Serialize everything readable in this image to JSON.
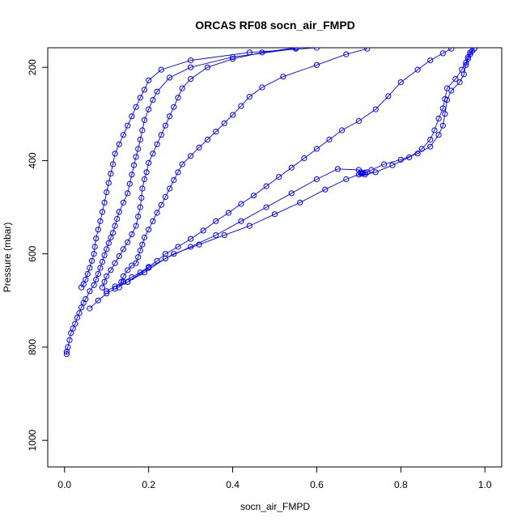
{
  "chart_data": {
    "type": "line",
    "title": "ORCAS RF08 socn_air_FMPD",
    "xlabel": "socn_air_FMPD",
    "ylabel": "Pressure (mbar)",
    "xlim": [
      -0.04,
      1.04
    ],
    "ylim": [
      1057,
      158
    ],
    "y_reversed": true,
    "x_ticks": [
      0.0,
      0.2,
      0.4,
      0.6,
      0.8,
      1.0
    ],
    "x_tick_labels": [
      "0.0",
      "0.2",
      "0.4",
      "0.6",
      "0.8",
      "1.0"
    ],
    "y_ticks": [
      200,
      400,
      600,
      800,
      1000
    ],
    "y_tick_labels": [
      "200",
      "400",
      "600",
      "800",
      "1000"
    ],
    "grid": false,
    "marker": "open-circle",
    "color": "#0000ff",
    "series": [
      {
        "values": [
          [
            0.005,
            815
          ],
          [
            0.005,
            810
          ],
          [
            0.008,
            800
          ],
          [
            0.012,
            785
          ],
          [
            0.015,
            770
          ],
          [
            0.02,
            760
          ],
          [
            0.025,
            750
          ],
          [
            0.03,
            737
          ],
          [
            0.035,
            727
          ],
          [
            0.04,
            715
          ],
          [
            0.045,
            705
          ],
          [
            0.05,
            697
          ],
          [
            0.06,
            680
          ],
          [
            0.07,
            667
          ],
          [
            0.075,
            655
          ],
          [
            0.08,
            643
          ],
          [
            0.085,
            630
          ],
          [
            0.09,
            617
          ],
          [
            0.095,
            603
          ],
          [
            0.1,
            590
          ],
          [
            0.105,
            577
          ],
          [
            0.11,
            565
          ],
          [
            0.115,
            555
          ],
          [
            0.12,
            540
          ],
          [
            0.125,
            525
          ],
          [
            0.13,
            510
          ],
          [
            0.14,
            490
          ],
          [
            0.15,
            470
          ],
          [
            0.155,
            450
          ],
          [
            0.16,
            430
          ],
          [
            0.165,
            410
          ],
          [
            0.17,
            392
          ],
          [
            0.175,
            375
          ],
          [
            0.18,
            355
          ],
          [
            0.185,
            335
          ],
          [
            0.19,
            313
          ],
          [
            0.2,
            290
          ],
          [
            0.21,
            270
          ],
          [
            0.22,
            252
          ],
          [
            0.25,
            222
          ],
          [
            0.3,
            200
          ],
          [
            0.4,
            178
          ],
          [
            0.55,
            160
          ]
        ]
      },
      {
        "values": [
          [
            0.04,
            672
          ],
          [
            0.045,
            665
          ],
          [
            0.05,
            655
          ],
          [
            0.055,
            643
          ],
          [
            0.06,
            630
          ],
          [
            0.065,
            615
          ],
          [
            0.07,
            600
          ],
          [
            0.072,
            585
          ],
          [
            0.075,
            567
          ],
          [
            0.08,
            548
          ],
          [
            0.085,
            530
          ],
          [
            0.09,
            510
          ],
          [
            0.095,
            490
          ],
          [
            0.1,
            468
          ],
          [
            0.105,
            448
          ],
          [
            0.11,
            428
          ],
          [
            0.115,
            408
          ],
          [
            0.12,
            385
          ],
          [
            0.13,
            365
          ],
          [
            0.14,
            345
          ],
          [
            0.15,
            325
          ],
          [
            0.16,
            305
          ],
          [
            0.17,
            285
          ],
          [
            0.18,
            265
          ],
          [
            0.19,
            248
          ],
          [
            0.2,
            228
          ],
          [
            0.23,
            205
          ],
          [
            0.3,
            185
          ],
          [
            0.44,
            168
          ],
          [
            0.6,
            158
          ]
        ]
      },
      {
        "values": [
          [
            0.09,
            672
          ],
          [
            0.095,
            660
          ],
          [
            0.1,
            648
          ],
          [
            0.11,
            635
          ],
          [
            0.12,
            620
          ],
          [
            0.13,
            605
          ],
          [
            0.14,
            590
          ],
          [
            0.15,
            575
          ],
          [
            0.16,
            558
          ],
          [
            0.17,
            540
          ],
          [
            0.175,
            520
          ],
          [
            0.18,
            500
          ],
          [
            0.183,
            480
          ],
          [
            0.185,
            460
          ],
          [
            0.19,
            440
          ],
          [
            0.195,
            425
          ],
          [
            0.2,
            405
          ],
          [
            0.21,
            385
          ],
          [
            0.22,
            365
          ],
          [
            0.23,
            345
          ],
          [
            0.24,
            325
          ],
          [
            0.25,
            305
          ],
          [
            0.26,
            285
          ],
          [
            0.27,
            265
          ],
          [
            0.28,
            245
          ],
          [
            0.3,
            225
          ],
          [
            0.34,
            200
          ],
          [
            0.4,
            182
          ],
          [
            0.47,
            168
          ],
          [
            0.55,
            158
          ]
        ]
      },
      {
        "values": [
          [
            0.13,
            672
          ],
          [
            0.135,
            660
          ],
          [
            0.14,
            648
          ],
          [
            0.15,
            635
          ],
          [
            0.16,
            625
          ],
          [
            0.17,
            620
          ],
          [
            0.175,
            607
          ],
          [
            0.18,
            593
          ],
          [
            0.185,
            580
          ],
          [
            0.19,
            565
          ],
          [
            0.2,
            548
          ],
          [
            0.21,
            530
          ],
          [
            0.22,
            512
          ],
          [
            0.23,
            495
          ],
          [
            0.24,
            478
          ],
          [
            0.25,
            460
          ],
          [
            0.26,
            442
          ],
          [
            0.27,
            425
          ],
          [
            0.28,
            408
          ],
          [
            0.3,
            390
          ],
          [
            0.32,
            372
          ],
          [
            0.34,
            355
          ],
          [
            0.36,
            338
          ],
          [
            0.38,
            320
          ],
          [
            0.4,
            302
          ],
          [
            0.42,
            283
          ],
          [
            0.44,
            263
          ],
          [
            0.47,
            243
          ],
          [
            0.52,
            220
          ],
          [
            0.6,
            195
          ],
          [
            0.67,
            172
          ],
          [
            0.72,
            160
          ]
        ]
      },
      {
        "values": [
          [
            0.1,
            680
          ],
          [
            0.12,
            670
          ],
          [
            0.14,
            660
          ],
          [
            0.16,
            650
          ],
          [
            0.18,
            640
          ],
          [
            0.2,
            628
          ],
          [
            0.22,
            615
          ],
          [
            0.24,
            600
          ],
          [
            0.27,
            585
          ],
          [
            0.3,
            568
          ],
          [
            0.33,
            550
          ],
          [
            0.36,
            530
          ],
          [
            0.39,
            512
          ],
          [
            0.42,
            493
          ],
          [
            0.45,
            475
          ],
          [
            0.48,
            455
          ],
          [
            0.51,
            435
          ],
          [
            0.54,
            415
          ],
          [
            0.57,
            395
          ],
          [
            0.6,
            375
          ],
          [
            0.63,
            355
          ],
          [
            0.66,
            335
          ],
          [
            0.7,
            315
          ],
          [
            0.74,
            290
          ],
          [
            0.77,
            262
          ],
          [
            0.8,
            232
          ],
          [
            0.84,
            205
          ],
          [
            0.87,
            185
          ],
          [
            0.9,
            170
          ],
          [
            0.92,
            160
          ]
        ]
      },
      {
        "values": [
          [
            0.15,
            660
          ],
          [
            0.2,
            630
          ],
          [
            0.26,
            600
          ],
          [
            0.32,
            580
          ],
          [
            0.38,
            560
          ],
          [
            0.44,
            540
          ],
          [
            0.5,
            515
          ],
          [
            0.56,
            490
          ],
          [
            0.62,
            462
          ],
          [
            0.67,
            440
          ],
          [
            0.7,
            430
          ],
          [
            0.705,
            428
          ],
          [
            0.71,
            427
          ],
          [
            0.715,
            426
          ],
          [
            0.72,
            425
          ],
          [
            0.73,
            420
          ],
          [
            0.76,
            408
          ],
          [
            0.8,
            398
          ],
          [
            0.84,
            385
          ],
          [
            0.87,
            370
          ],
          [
            0.89,
            345
          ],
          [
            0.9,
            325
          ],
          [
            0.905,
            300
          ],
          [
            0.91,
            270
          ],
          [
            0.92,
            250
          ],
          [
            0.94,
            232
          ],
          [
            0.95,
            215
          ],
          [
            0.955,
            195
          ],
          [
            0.96,
            182
          ],
          [
            0.965,
            172
          ],
          [
            0.97,
            165
          ],
          [
            0.975,
            160
          ]
        ]
      },
      {
        "values": [
          [
            0.06,
            717
          ],
          [
            0.08,
            700
          ],
          [
            0.1,
            685
          ],
          [
            0.12,
            675
          ],
          [
            0.15,
            660
          ],
          [
            0.19,
            640
          ],
          [
            0.24,
            610
          ],
          [
            0.3,
            585
          ],
          [
            0.36,
            560
          ],
          [
            0.42,
            530
          ],
          [
            0.48,
            500
          ],
          [
            0.54,
            470
          ],
          [
            0.6,
            440
          ],
          [
            0.65,
            418
          ],
          [
            0.7,
            420
          ],
          [
            0.705,
            425
          ],
          [
            0.708,
            428
          ],
          [
            0.715,
            430
          ],
          [
            0.74,
            425
          ],
          [
            0.78,
            410
          ],
          [
            0.82,
            393
          ],
          [
            0.85,
            375
          ],
          [
            0.87,
            355
          ],
          [
            0.88,
            335
          ],
          [
            0.89,
            310
          ],
          [
            0.9,
            288
          ],
          [
            0.905,
            268
          ],
          [
            0.91,
            245
          ],
          [
            0.93,
            225
          ],
          [
            0.945,
            205
          ],
          [
            0.955,
            190
          ],
          [
            0.96,
            178
          ],
          [
            0.965,
            168
          ],
          [
            0.975,
            160
          ]
        ]
      }
    ]
  }
}
